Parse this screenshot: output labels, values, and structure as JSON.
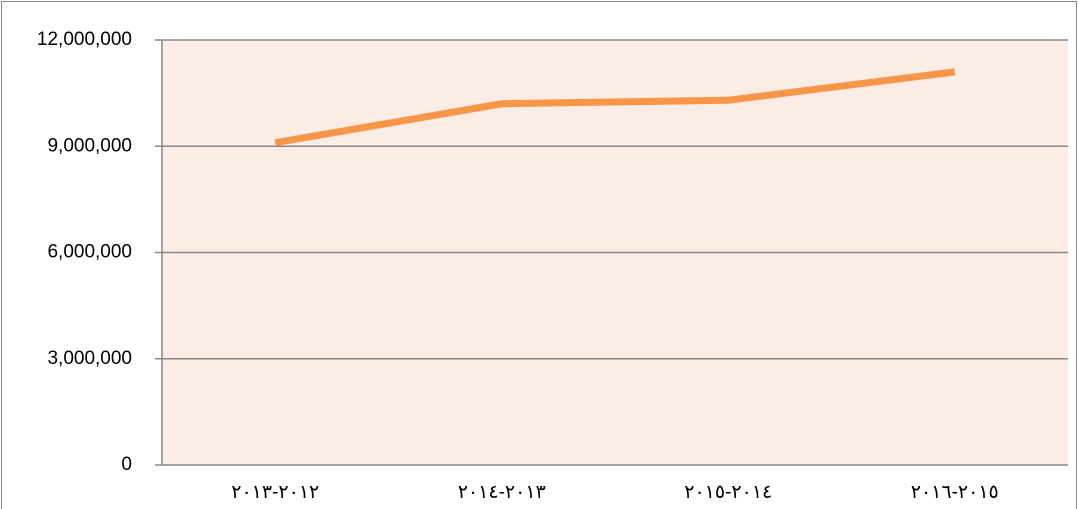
{
  "chart_data": {
    "type": "line",
    "categories": [
      "٢٠١٣-٢٠١٢",
      "٢٠١٤-٢٠١٣",
      "٢٠١٥-٢٠١٤",
      "٢٠١٦-٢٠١٥"
    ],
    "series": [
      {
        "color": "#f79646",
        "values": [
          9100000,
          10200000,
          10300000,
          11100000
        ]
      }
    ],
    "ylim": [
      0,
      12000000
    ],
    "yticks": [
      0,
      {
        "value": 3000000,
        "label": "3,000,000"
      },
      {
        "value": 6000000,
        "label": "6,000,000"
      },
      {
        "value": 9000000,
        "label": "9,000,000"
      },
      {
        "value": 12000000,
        "label": "12,000,000"
      }
    ],
    "grid": true
  }
}
